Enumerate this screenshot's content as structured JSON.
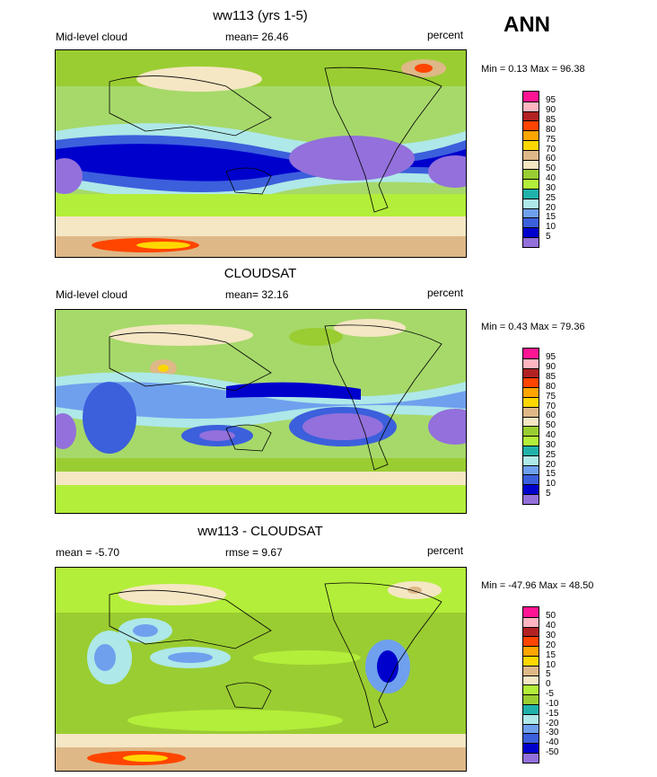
{
  "season": "ANN",
  "panels": [
    {
      "title": "ww113 (yrs 1-5)",
      "left_text": "Mid-level cloud",
      "center_text": "mean=  26.46",
      "units": "percent",
      "minmax": "Min =   0.13 Max =  96.38",
      "colorbar": {
        "labels": [
          "95",
          "90",
          "85",
          "80",
          "75",
          "70",
          "60",
          "50",
          "40",
          "30",
          "25",
          "20",
          "15",
          "10",
          "5"
        ],
        "colors": [
          "#ff1493",
          "#ffb6c1",
          "#b22222",
          "#ff4500",
          "#ffa500",
          "#ffd700",
          "#deb887",
          "#f5e6c4",
          "#9acd32",
          "#b3ee3a",
          "#20b2aa",
          "#aee8e8",
          "#6fa0ee",
          "#3c5fdc",
          "#0000cd",
          "#9370db"
        ]
      }
    },
    {
      "title": "CLOUDSAT",
      "left_text": "Mid-level cloud",
      "center_text": "mean=  32.16",
      "units": "percent",
      "minmax": "Min =   0.43 Max =  79.36",
      "colorbar": {
        "labels": [
          "95",
          "90",
          "85",
          "80",
          "75",
          "70",
          "60",
          "50",
          "40",
          "30",
          "25",
          "20",
          "15",
          "10",
          "5"
        ],
        "colors": [
          "#ff1493",
          "#ffb6c1",
          "#b22222",
          "#ff4500",
          "#ffa500",
          "#ffd700",
          "#deb887",
          "#f5e6c4",
          "#9acd32",
          "#b3ee3a",
          "#20b2aa",
          "#aee8e8",
          "#6fa0ee",
          "#3c5fdc",
          "#0000cd",
          "#9370db"
        ]
      }
    },
    {
      "title": "ww113 - CLOUDSAT",
      "left_text": "mean =  -5.70",
      "center_text": "rmse =   9.67",
      "units": "percent",
      "minmax": "Min = -47.96 Max =  48.50",
      "colorbar": {
        "labels": [
          "50",
          "40",
          "30",
          "20",
          "15",
          "10",
          "5",
          "0",
          "-5",
          "-10",
          "-15",
          "-20",
          "-30",
          "-40",
          "-50"
        ],
        "colors": [
          "#ff1493",
          "#ffb6c1",
          "#b22222",
          "#ff4500",
          "#ffa500",
          "#ffd700",
          "#deb887",
          "#f5e6c4",
          "#b3ee3a",
          "#9acd32",
          "#20b2aa",
          "#aee8e8",
          "#6fa0ee",
          "#3c5fdc",
          "#0000cd",
          "#9370db"
        ]
      }
    }
  ]
}
